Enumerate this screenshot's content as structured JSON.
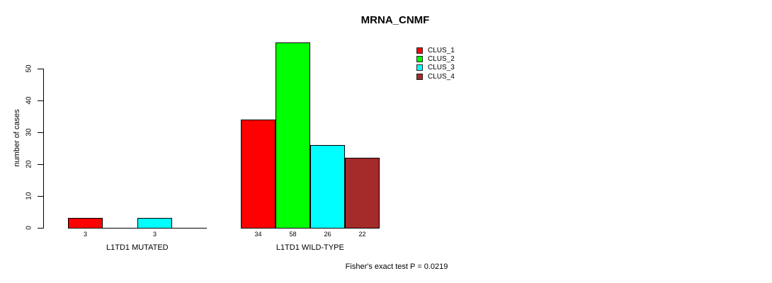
{
  "chart_data": {
    "type": "bar",
    "title": "MRNA_CNMF",
    "ylabel": "number of cases",
    "xlabel": "",
    "ylim": [
      0,
      50
    ],
    "yticks": [
      0,
      10,
      20,
      30,
      40,
      50
    ],
    "grid": false,
    "legend_position": "top-right",
    "categories": [
      "L1TD1 MUTATED",
      "L1TD1 WILD-TYPE"
    ],
    "series": [
      {
        "name": "CLUS_1",
        "color": "#FF0000",
        "values": [
          3,
          34
        ]
      },
      {
        "name": "CLUS_2",
        "color": "#00FF00",
        "values": [
          0,
          58
        ]
      },
      {
        "name": "CLUS_3",
        "color": "#00FFFF",
        "values": [
          3,
          26
        ]
      },
      {
        "name": "CLUS_4",
        "color": "#A52A2A",
        "values": [
          0,
          22
        ]
      }
    ],
    "bar_value_labels": [
      [
        "3",
        "",
        "3",
        ""
      ],
      [
        "34",
        "58",
        "26",
        "22"
      ]
    ],
    "annotation": "Fisher's exact test P = 0.0219"
  },
  "colors": {
    "axis": "#000000",
    "bar_border": "#000000",
    "background": "#FFFFFF"
  }
}
